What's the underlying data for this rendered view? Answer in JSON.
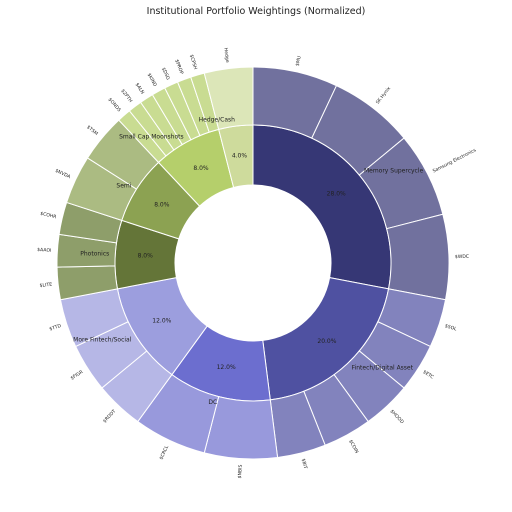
{
  "title": "Institutional Portfolio Weightings (Normalized)",
  "chart_data": {
    "type": "sunburst",
    "title": "Institutional Portfolio Weightings (Normalized)",
    "sectors": [
      {
        "name": "Memory Supercycle",
        "value": 28.0,
        "value_label": "28.0%",
        "color": "#363775",
        "children": [
          {
            "name": "$MU",
            "color": "#71719e"
          },
          {
            "name": "SK Hynix",
            "color": "#71719e"
          },
          {
            "name": "Samsung Electronics",
            "color": "#71719e"
          },
          {
            "name": "$WDC",
            "color": "#71719e"
          }
        ]
      },
      {
        "name": "Fintech/Digital Asset",
        "value": 20.0,
        "value_label": "20.0%",
        "color": "#4f51a1",
        "children": [
          {
            "name": "$SOL",
            "color": "#8283bd"
          },
          {
            "name": "$ETC",
            "color": "#8283bd"
          },
          {
            "name": "$HOOD",
            "color": "#8283bd"
          },
          {
            "name": "$COIN",
            "color": "#8283bd"
          },
          {
            "name": "$BIT",
            "color": "#8283bd"
          }
        ]
      },
      {
        "name": "DC",
        "value": 12.0,
        "value_label": "12.0%",
        "color": "#6c6ecf",
        "children": [
          {
            "name": "$NBIS",
            "color": "#9899dc"
          },
          {
            "name": "$CRCL",
            "color": "#9899dc"
          }
        ]
      },
      {
        "name": "More Fintech/Social",
        "value": 12.0,
        "value_label": "12.0%",
        "color": "#9c9ede",
        "children": [
          {
            "name": "$RDDT",
            "color": "#b6b7e6"
          },
          {
            "name": "$FIGR",
            "color": "#b6b7e6"
          },
          {
            "name": "$TTD",
            "color": "#b6b7e6"
          }
        ]
      },
      {
        "name": "Photonics",
        "value": 8.0,
        "value_label": "8.0%",
        "color": "#647538",
        "children": [
          {
            "name": "$LITE",
            "color": "#8e9e6a"
          },
          {
            "name": "$AAOI",
            "color": "#8e9e6a"
          },
          {
            "name": "$COHR",
            "color": "#8e9e6a"
          }
        ]
      },
      {
        "name": "Semi",
        "value": 8.0,
        "value_label": "8.0%",
        "color": "#8ca252",
        "children": [
          {
            "name": "$NVDA",
            "color": "#abbb82"
          },
          {
            "name": "$TSM",
            "color": "#abbb82"
          }
        ]
      },
      {
        "name": "Small Cap Moonshots",
        "value": 8.0,
        "value_label": "8.0%",
        "color": "#b5cf6b",
        "children": [
          {
            "name": "$ONDS",
            "color": "#c9dc92"
          },
          {
            "name": "$ZPTH",
            "color": "#c9dc92"
          },
          {
            "name": "$ALN",
            "color": "#c9dc92"
          },
          {
            "name": "$KIND",
            "color": "#c9dc92"
          },
          {
            "name": "$DSG",
            "color": "#c9dc92"
          },
          {
            "name": "$PROP",
            "color": "#c9dc92"
          },
          {
            "name": "$CPSH",
            "color": "#c9dc92"
          }
        ]
      },
      {
        "name": "Hedge/Cash",
        "value": 4.0,
        "value_label": "4.0%",
        "color": "#cedb9c",
        "children": [
          {
            "name": "Hedge",
            "color": "#dce6b8"
          }
        ]
      }
    ]
  }
}
